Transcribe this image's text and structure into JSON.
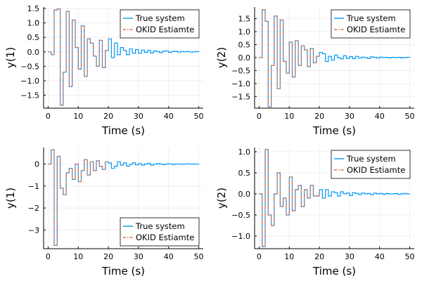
{
  "chart_data": [
    {
      "type": "line",
      "step": true,
      "xlabel": "Time (s)",
      "ylabel": "y(1)",
      "xlim": [
        -1.5,
        51.5
      ],
      "ylim": [
        -1.95,
        1.55
      ],
      "xticks": [
        0,
        10,
        20,
        30,
        40,
        50
      ],
      "yticks": [
        -1.5,
        -1.0,
        -0.5,
        0.0,
        0.5,
        1.0,
        1.5
      ],
      "ytick_labels": [
        "−1.5",
        "−1.0",
        "−0.5",
        "0.0",
        "0.5",
        "1.0",
        "1.5"
      ],
      "legend": "top-right",
      "series": [
        {
          "name": "True system",
          "color": "#009AFA",
          "style": "solid",
          "x": [
            0,
            1,
            2,
            3,
            4,
            5,
            6,
            7,
            8,
            9,
            10,
            11,
            12,
            13,
            14,
            15,
            16,
            17,
            18,
            19,
            20,
            21,
            22,
            23,
            24,
            25,
            26,
            27,
            28,
            29,
            30,
            31,
            32,
            33,
            34,
            35,
            36,
            37,
            38,
            39,
            40,
            41,
            42,
            43,
            44,
            45,
            46,
            47,
            48,
            49,
            50
          ],
          "y": [
            0,
            -0.1,
            1.45,
            1.48,
            -1.85,
            -0.7,
            1.4,
            -1.2,
            1.1,
            0.15,
            -0.6,
            0.9,
            -0.85,
            0.45,
            0.3,
            -0.15,
            -0.5,
            0.4,
            -0.55,
            0.05,
            0.45,
            -0.2,
            0.3,
            -0.1,
            0.15,
            0.05,
            -0.1,
            0.1,
            -0.05,
            0.08,
            -0.05,
            0.06,
            -0.02,
            0.05,
            -0.04,
            0.03,
            0.01,
            -0.03,
            0.02,
            0.03,
            -0.02,
            0.01,
            0.02,
            -0.01,
            0.01,
            0.0,
            0.01,
            -0.01,
            0.0,
            0.01,
            0.0
          ]
        },
        {
          "name": "OKID Estiamte",
          "color": "#E26F46",
          "style": "dashdot",
          "x": [
            0,
            1,
            2,
            3,
            4,
            5,
            6,
            7,
            8,
            9,
            10,
            11,
            12,
            13,
            14,
            15,
            16,
            17,
            18,
            19,
            20
          ],
          "y": [
            0,
            -0.1,
            1.45,
            1.48,
            -1.85,
            -0.7,
            1.4,
            -1.2,
            1.1,
            0.15,
            -0.6,
            0.9,
            -0.85,
            0.45,
            0.3,
            -0.15,
            -0.5,
            0.4,
            -0.55,
            0.05,
            0.45
          ]
        }
      ]
    },
    {
      "type": "line",
      "step": true,
      "xlabel": "Time (s)",
      "ylabel": "y(2)",
      "xlim": [
        -1.5,
        51.5
      ],
      "ylim": [
        -1.95,
        1.95
      ],
      "xticks": [
        0,
        10,
        20,
        30,
        40,
        50
      ],
      "yticks": [
        -1.5,
        -1.0,
        -0.5,
        0.0,
        0.5,
        1.0,
        1.5
      ],
      "ytick_labels": [
        "−1.5",
        "−1.0",
        "−0.5",
        "0.0",
        "0.5",
        "1.0",
        "1.5"
      ],
      "legend": "top-right",
      "series": [
        {
          "name": "True system",
          "color": "#009AFA",
          "style": "solid",
          "x": [
            0,
            1,
            2,
            3,
            4,
            5,
            6,
            7,
            8,
            9,
            10,
            11,
            12,
            13,
            14,
            15,
            16,
            17,
            18,
            19,
            20,
            21,
            22,
            23,
            24,
            25,
            26,
            27,
            28,
            29,
            30,
            31,
            32,
            33,
            34,
            35,
            36,
            37,
            38,
            39,
            40,
            41,
            42,
            43,
            44,
            45,
            46,
            47,
            48,
            49,
            50
          ],
          "y": [
            0,
            1.85,
            1.4,
            -1.9,
            -0.3,
            1.6,
            -1.2,
            1.45,
            -0.15,
            -0.6,
            0.6,
            -0.75,
            0.65,
            -0.3,
            0.45,
            0.3,
            -0.35,
            0.35,
            -0.2,
            0.05,
            0.2,
            0.15,
            -0.15,
            0.05,
            -0.1,
            0.1,
            0.0,
            -0.05,
            0.07,
            -0.03,
            0.04,
            -0.04,
            0.05,
            -0.02,
            0.02,
            0.0,
            -0.03,
            0.03,
            0.01,
            -0.02,
            0.02,
            0.0,
            0.01,
            -0.01,
            0.01,
            0.0,
            0.01,
            -0.01,
            0.0,
            0.01,
            0.0
          ]
        },
        {
          "name": "OKID Estiamte",
          "color": "#E26F46",
          "style": "dashdot",
          "x": [
            0,
            1,
            2,
            3,
            4,
            5,
            6,
            7,
            8,
            9,
            10,
            11,
            12,
            13,
            14,
            15,
            16,
            17,
            18,
            19,
            20
          ],
          "y": [
            0,
            1.85,
            1.4,
            -1.9,
            -0.3,
            1.6,
            -1.2,
            1.45,
            -0.15,
            -0.6,
            0.6,
            -0.75,
            0.65,
            -0.3,
            0.45,
            0.3,
            -0.35,
            0.35,
            -0.2,
            0.05,
            0.2
          ]
        }
      ]
    },
    {
      "type": "line",
      "step": true,
      "xlabel": "Time (s)",
      "ylabel": "y(1)",
      "xlim": [
        -1.5,
        51.5
      ],
      "ylim": [
        -3.85,
        0.75
      ],
      "xticks": [
        0,
        10,
        20,
        30,
        40,
        50
      ],
      "yticks": [
        -3,
        -2,
        -1,
        0
      ],
      "ytick_labels": [
        "−3",
        "−2",
        "−1",
        "0"
      ],
      "legend": "bottom-right",
      "series": [
        {
          "name": "True system",
          "color": "#009AFA",
          "style": "solid",
          "x": [
            0,
            1,
            2,
            3,
            4,
            5,
            6,
            7,
            8,
            9,
            10,
            11,
            12,
            13,
            14,
            15,
            16,
            17,
            18,
            19,
            20,
            21,
            22,
            23,
            24,
            25,
            26,
            27,
            28,
            29,
            30,
            31,
            32,
            33,
            34,
            35,
            36,
            37,
            38,
            39,
            40,
            41,
            42,
            43,
            44,
            45,
            46,
            47,
            48,
            49,
            50
          ],
          "y": [
            0,
            0.65,
            -3.7,
            0.35,
            -1.1,
            -1.4,
            -0.4,
            -0.2,
            -0.7,
            0.0,
            -0.8,
            -0.3,
            0.2,
            -0.5,
            0.1,
            -0.3,
            0.15,
            -0.1,
            -0.25,
            0.1,
            0.05,
            -0.2,
            -0.1,
            0.1,
            -0.05,
            0.05,
            -0.1,
            -0.02,
            0.05,
            -0.04,
            0.02,
            -0.05,
            0.0,
            0.03,
            -0.05,
            -0.01,
            0.02,
            0.0,
            -0.03,
            0.0,
            0.01,
            -0.02,
            0.0,
            0.0,
            -0.01,
            0.0,
            0.01,
            0.0,
            0.0,
            -0.01,
            0.0
          ]
        },
        {
          "name": "OKID Estiamte",
          "color": "#E26F46",
          "style": "dashdot",
          "x": [
            0,
            1,
            2,
            3,
            4,
            5,
            6,
            7,
            8,
            9,
            10,
            11,
            12,
            13,
            14,
            15,
            16,
            17,
            18,
            19,
            20
          ],
          "y": [
            0,
            0.65,
            -3.7,
            0.35,
            -1.1,
            -1.4,
            -0.4,
            -0.2,
            -0.7,
            0.0,
            -0.8,
            -0.3,
            0.2,
            -0.5,
            0.1,
            -0.3,
            0.15,
            -0.1,
            -0.25,
            0.1,
            0.05
          ]
        }
      ]
    },
    {
      "type": "line",
      "step": true,
      "xlabel": "Time (s)",
      "ylabel": "y(2)",
      "xlim": [
        -1.5,
        51.5
      ],
      "ylim": [
        -1.3,
        1.1
      ],
      "xticks": [
        0,
        10,
        20,
        30,
        40,
        50
      ],
      "yticks": [
        -1.0,
        -0.5,
        0.0,
        0.5,
        1.0
      ],
      "ytick_labels": [
        "−1.0",
        "−0.5",
        "0.0",
        "0.5",
        "1.0"
      ],
      "legend": "top-right",
      "series": [
        {
          "name": "True system",
          "color": "#009AFA",
          "style": "solid",
          "x": [
            0,
            1,
            2,
            3,
            4,
            5,
            6,
            7,
            8,
            9,
            10,
            11,
            12,
            13,
            14,
            15,
            16,
            17,
            18,
            19,
            20,
            21,
            22,
            23,
            24,
            25,
            26,
            27,
            28,
            29,
            30,
            31,
            32,
            33,
            34,
            35,
            36,
            37,
            38,
            39,
            40,
            41,
            42,
            43,
            44,
            45,
            46,
            47,
            48,
            49,
            50
          ],
          "y": [
            0,
            -1.25,
            1.05,
            -0.5,
            -0.75,
            0.0,
            0.5,
            -0.3,
            -0.1,
            -0.5,
            0.4,
            -0.4,
            0.1,
            0.2,
            -0.3,
            0.1,
            -0.1,
            0.2,
            -0.05,
            -0.05,
            0.1,
            -0.1,
            0.1,
            -0.05,
            0.05,
            0.03,
            -0.05,
            0.05,
            0.0,
            0.02,
            -0.04,
            0.03,
            0.01,
            -0.02,
            0.02,
            0.0,
            0.01,
            -0.02,
            0.02,
            0.0,
            0.01,
            -0.01,
            0.01,
            0.0,
            0.0,
            0.01,
            -0.01,
            0.0,
            0.01,
            0.0,
            0.0
          ]
        },
        {
          "name": "OKID Estiamte",
          "color": "#E26F46",
          "style": "dashdot",
          "x": [
            0,
            1,
            2,
            3,
            4,
            5,
            6,
            7,
            8,
            9,
            10,
            11,
            12,
            13,
            14,
            15,
            16,
            17,
            18,
            19,
            20
          ],
          "y": [
            0,
            -1.25,
            1.05,
            -0.5,
            -0.75,
            0.0,
            0.5,
            -0.3,
            -0.1,
            -0.5,
            0.4,
            -0.4,
            0.1,
            0.2,
            -0.3,
            0.1,
            -0.1,
            0.2,
            -0.05,
            -0.05,
            0.1
          ]
        }
      ]
    }
  ]
}
